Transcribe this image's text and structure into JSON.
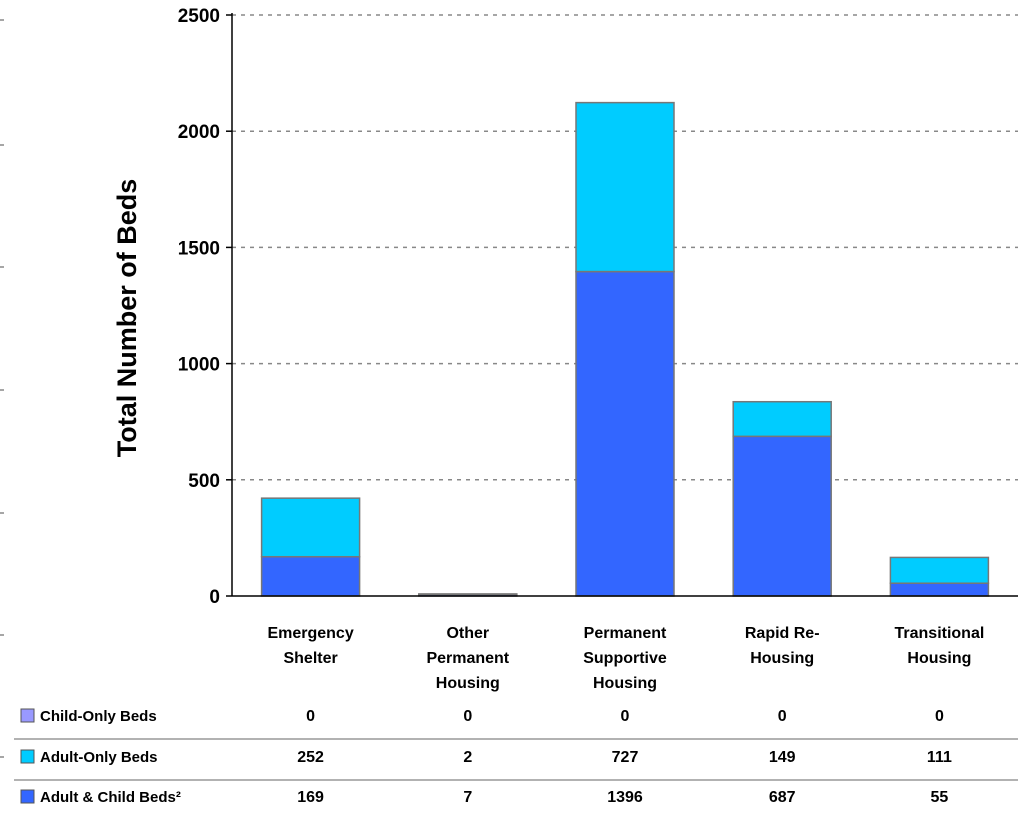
{
  "colors": {
    "child_only": "#9999ff",
    "adult_only": "#00ccff",
    "adult_child": "#3366ff",
    "grid": "#888888",
    "bar_border": "#777777"
  },
  "chart_data": {
    "type": "bar",
    "stacked": true,
    "ylabel": "Total Number of Beds",
    "ylim": [
      0,
      2500
    ],
    "yticks": [
      0,
      500,
      1000,
      1500,
      2000,
      2500
    ],
    "grid": true,
    "legend_placement": "data-table-below",
    "categories": [
      [
        "Emergency",
        "Shelter"
      ],
      [
        "Other",
        "Permanent",
        "Housing"
      ],
      [
        "Permanent",
        "Supportive",
        "Housing"
      ],
      [
        "Rapid Re-",
        "Housing"
      ],
      [
        "Transitional",
        "Housing"
      ]
    ],
    "series": [
      {
        "name": "Adult & Child Beds²",
        "values": [
          169,
          7,
          1396,
          687,
          55
        ]
      },
      {
        "name": "Adult-Only Beds",
        "values": [
          252,
          2,
          727,
          149,
          111
        ]
      },
      {
        "name": "Child-Only Beds",
        "values": [
          0,
          0,
          0,
          0,
          0
        ]
      }
    ]
  }
}
